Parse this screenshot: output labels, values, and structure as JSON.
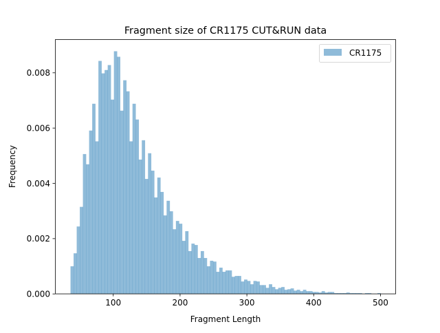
{
  "chart_data": {
    "type": "bar",
    "subtype": "histogram",
    "title": "Fragment size of CR1175 CUT&RUN data",
    "xlabel": "Fragment Length",
    "ylabel": "Frequency",
    "xlim": [
      12.8,
      523.2
    ],
    "ylim": [
      0,
      0.0092
    ],
    "xticks": [
      100,
      200,
      300,
      400,
      500
    ],
    "xtick_labels": [
      "100",
      "200",
      "300",
      "400",
      "500"
    ],
    "yticks": [
      0,
      0.002,
      0.004,
      0.006,
      0.008
    ],
    "ytick_labels": [
      "0.000",
      "0.002",
      "0.004",
      "0.006",
      "0.008"
    ],
    "grid": false,
    "legend_position": "top-right",
    "bin_range": [
      36,
      500
    ],
    "bins": 100,
    "series": [
      {
        "name": "CR1175",
        "color": "#1f77b4",
        "alpha": 0.5,
        "values": [
          0.001,
          0.00147,
          0.00244,
          0.00315,
          0.00506,
          0.00469,
          0.00591,
          0.00688,
          0.00552,
          0.00843,
          0.00798,
          0.0081,
          0.00828,
          0.00703,
          0.00878,
          0.00858,
          0.00663,
          0.00773,
          0.00733,
          0.00552,
          0.00688,
          0.00631,
          0.00486,
          0.00556,
          0.00416,
          0.00509,
          0.00446,
          0.00349,
          0.00421,
          0.00369,
          0.00284,
          0.00337,
          0.00299,
          0.00234,
          0.00264,
          0.00254,
          0.00192,
          0.00227,
          0.00155,
          0.00182,
          0.00177,
          0.0013,
          0.00155,
          0.0013,
          0.001,
          0.0012,
          0.00117,
          0.0008,
          0.00095,
          0.0008,
          0.00085,
          0.00085,
          0.00062,
          0.00065,
          0.00065,
          0.00045,
          0.00052,
          0.00047,
          0.00035,
          0.00047,
          0.00045,
          0.00032,
          0.00032,
          0.00022,
          0.00035,
          0.00025,
          0.00017,
          0.00022,
          0.00025,
          0.00015,
          0.00017,
          0.0002,
          0.00012,
          0.00015,
          0.0001,
          0.00015,
          0.0001,
          0.0001,
          7e-05,
          7e-05,
          5e-05,
          0.0001,
          5e-05,
          7e-05,
          7e-05,
          3e-05,
          3e-05,
          3e-05,
          3e-05,
          5e-05,
          3e-05,
          3e-05,
          3e-05,
          3e-05,
          0.0,
          3e-05,
          3e-05,
          0.0,
          0.0,
          3e-05
        ]
      }
    ]
  }
}
